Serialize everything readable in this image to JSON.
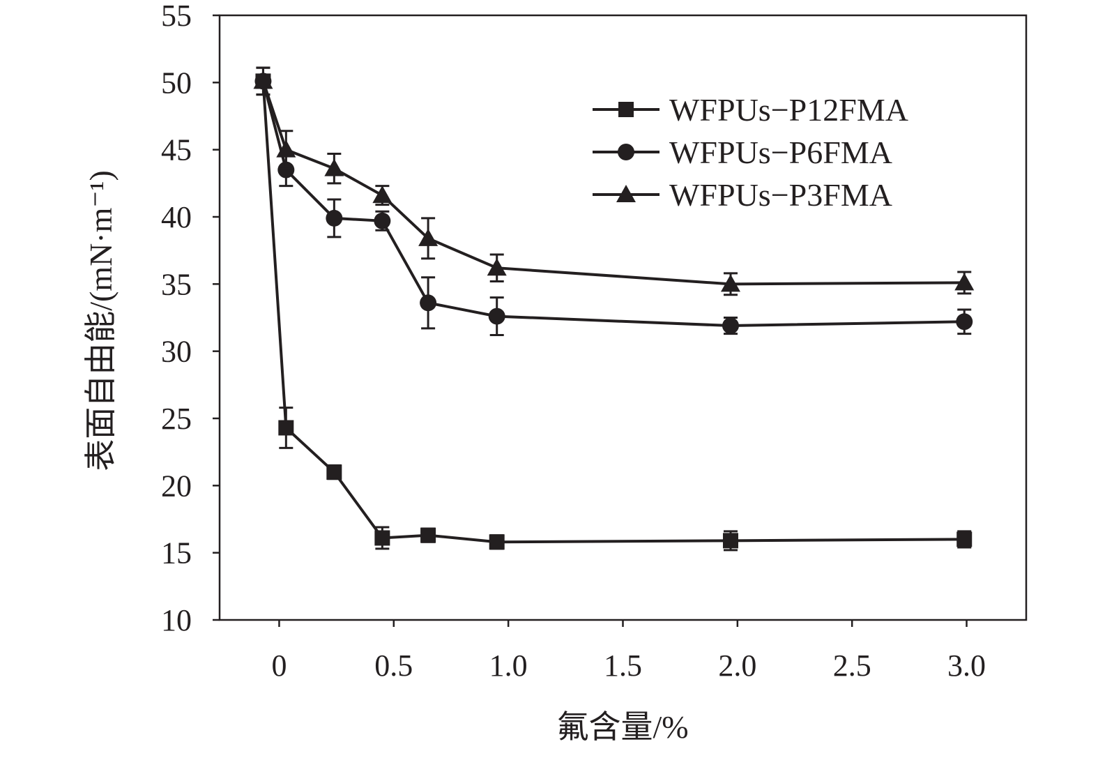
{
  "chart_data": {
    "type": "line",
    "title": "",
    "xlabel": "氟含量/%",
    "ylabel": "表面自由能/(mN·m⁻¹)",
    "xlim": [
      -0.26,
      3.26
    ],
    "ylim": [
      10,
      55
    ],
    "xticks": [
      0,
      0.5,
      1.0,
      1.5,
      2.0,
      2.5,
      3.0
    ],
    "xtick_labels": [
      "0",
      "0.5",
      "1.0",
      "1.5",
      "2.0",
      "2.5",
      "3.0"
    ],
    "yticks": [
      10,
      15,
      20,
      25,
      30,
      35,
      40,
      45,
      50,
      55
    ],
    "ytick_labels": [
      "10",
      "15",
      "20",
      "25",
      "30",
      "35",
      "40",
      "45",
      "50",
      "55"
    ],
    "grid": false,
    "legend_position": "top-right",
    "series": [
      {
        "name": "WFPUs−P12FMA",
        "marker": "square",
        "x": [
          -0.07,
          0.03,
          0.24,
          0.45,
          0.65,
          0.95,
          1.97,
          2.99
        ],
        "y": [
          50.1,
          24.3,
          21.0,
          16.1,
          16.3,
          15.8,
          15.9,
          16.0
        ],
        "err": [
          1.0,
          1.5,
          0.5,
          0.8,
          0.5,
          0.5,
          0.7,
          0.6
        ]
      },
      {
        "name": "WFPUs−P6FMA",
        "marker": "circle",
        "x": [
          -0.07,
          0.03,
          0.24,
          0.45,
          0.65,
          0.95,
          1.97,
          2.99
        ],
        "y": [
          50.1,
          43.5,
          39.9,
          39.7,
          33.6,
          32.6,
          31.9,
          32.2
        ],
        "err": [
          1.0,
          1.2,
          1.4,
          0.7,
          1.9,
          1.4,
          0.6,
          0.9
        ]
      },
      {
        "name": "WFPUs−P3FMA",
        "marker": "triangle",
        "x": [
          -0.07,
          0.03,
          0.24,
          0.45,
          0.65,
          0.95,
          1.97,
          2.99
        ],
        "y": [
          50.1,
          45.0,
          43.6,
          41.6,
          38.4,
          36.2,
          35.0,
          35.1
        ],
        "err": [
          1.0,
          1.4,
          1.1,
          0.7,
          1.5,
          1.0,
          0.8,
          0.8
        ]
      }
    ]
  }
}
